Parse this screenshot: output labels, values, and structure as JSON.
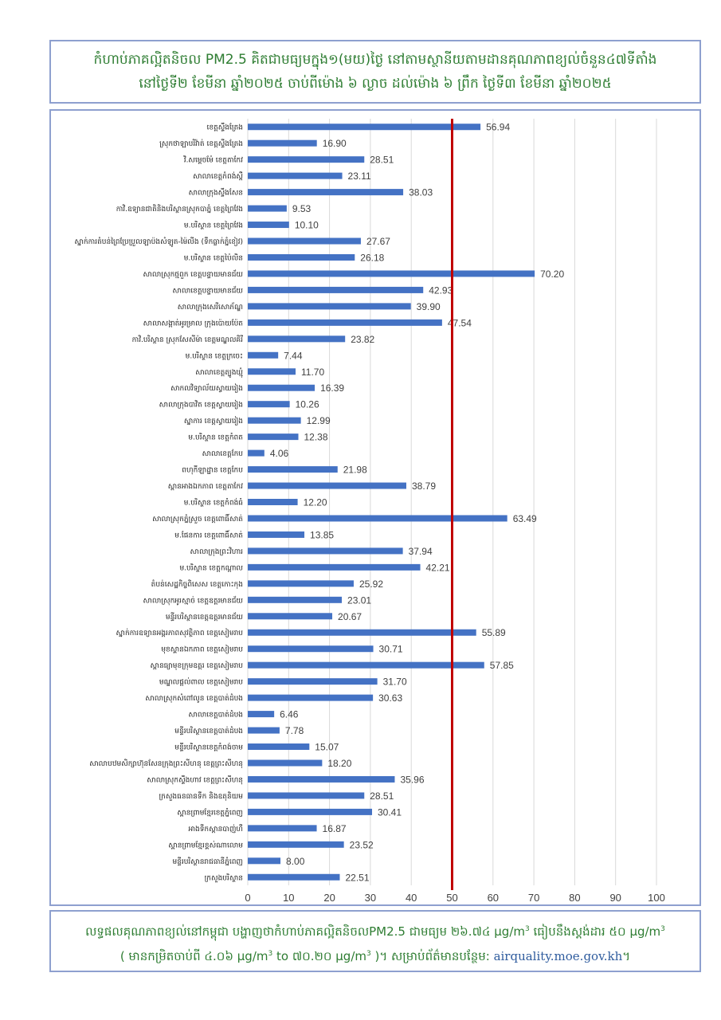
{
  "header": {
    "line1": "កំហាប់ភាគល្អិតនិចល PM2.5 គិតជាមធ្យមក្នុង១(មយ)ថ្ងៃ នៅតាមស្ថានីយតាមដានគុណភាពខ្យល់ចំនួន៤៧ទីតាំង",
    "line2": "នៅថ្ងៃទី២ ខែមីនា ឆ្នាំ២០២៥ ចាប់ពីម៉ោង ៦ ល្ងាច ដល់ម៉ោង ៦ ព្រឹក ថ្ងៃទី៣ ខែមីនា ឆ្នាំ២០២៥"
  },
  "chart_data": {
    "type": "bar",
    "orientation": "horizontal",
    "categories": [
      "ខេត្តស្ទឹងត្រែង",
      "ស្រុកថាឡាបរិវ៉ាត់ ខេត្តស្ទឹងត្រែង",
      "វិ.សម្តេចម៉ែ ខេត្តតាកែវ",
      "សាលាខេត្តកំពង់ស្ពឺ",
      "សាលាក្រុងស្ទឹងសែន",
      "កាវិ.ឧទ្យានជាតិនិងបរិស្ថានស្រុកបាភ្នំ ខេត្តព្រៃវែង",
      "ម.បរិស្ថាន ខេត្តព្រៃវែង",
      "ស្នាក់ការតំបន់ព្រៃប្រែប្រួលឡាប៉ងសំឡូត-ម៉ៃលីង (ទឹកធ្លាក់ភ្នំខៀវ)",
      "ម.បរិស្ថាន ខេត្តប៉ៃលិន",
      "សាលាស្រុកថ្មពួក ខេត្តបន្ទាយមានជ័យ",
      "សាលាខេត្តបន្ទាយមានជ័យ",
      "សាលាក្រុងសេរីសោភ័ណ្ឌ",
      "សាលាសង្កាត់អូរម្រាល ក្រុងប៉ោយប៉ែត",
      "កាវិ.បរិស្ថាន ស្រុកសែសីម៉ា ខេត្តមណ្ឌលគិរី",
      "ម.បរិស្ថាន ខេត្តក្រចេះ",
      "សាលាខេត្តត្បូងឃ្មុំ",
      "សាកលវិទ្យាល័យស្វាយរៀង",
      "សាលាក្រុងបាវិត ខេត្តស្វាយរៀង",
      "ស្នាការ ខេត្តស្វាយរៀង",
      "ម.បរិស្ថាន ខេត្តកំពត",
      "សាលាខេត្តកែប",
      "ពហុកីឡាដ្ឋាន ខេត្តកែប",
      "ស្ពានអាងឯកភាព ខេត្តតាកែវ",
      "ម.បរិស្ថាន ខេត្តកំពង់ធំ",
      "សាលាស្រុកភ្នំស្រួច ខេត្តពោធិ៍សាត់",
      "ម.ផែនការ ខេត្តពោធិ៍សាត់",
      "សាលាក្រុងព្រះវិហារ",
      "ម.បរិស្ថាន ខេត្តកណ្តាល",
      "តំបន់សេដ្ឋកិច្ចពិសេស ខេត្តកោះកុង",
      "សាលាស្រុកអូរស្មាច់ ខេត្តឧត្តរមានជ័យ",
      "មន្ទីរបរិស្ថានខេត្តឧត្តរមានជ័យ",
      "ស្នាក់ការឧទ្យានអង្គរភាពសុវត្ថិភាព ខេត្តសៀមរាប",
      "មុខស្ពានឯកភាព ខេត្តសៀមរាប",
      "ស្ពានធ្យាមុខក្រុមឧត្តរ ខេត្តសៀមរាប",
      "មណ្ឌលផ្តល់ពាល ខេត្តសៀមរាប",
      "សាលាស្រុកសំពៅលូន ខេត្តបាត់ដំបង",
      "សាលាខេត្តបាត់ដំបង",
      "មន្ទីរបរិស្ថានខេត្តបាត់ដំបង",
      "មន្ទីរបរិស្ថានខេត្តកំពង់ចាម",
      "សាលាបឋមសិក្សាហ៊ុនសែនក្រុងព្រះសីហនុ ខេត្តព្រះសីហនុ",
      "សាលាស្រុកស្ទឹងហាវ ខេត្តព្រះសីហនុ",
      "ក្រសួងធនធានទឹក និងឧតុនិយម",
      "ស្ពានព្រាមខ្មែរខេត្តភ្នំពេញ",
      "អាងទឹកស្ពានបាញ់ហឺ",
      "ស្ពានព្រាមខ្មែរខ្ពស់ណាលោម",
      "មន្ទីរបរិស្ថានរាជធានីភ្នំពេញ",
      "ក្រសួងបរិស្ថាន"
    ],
    "values": [
      56.94,
      16.9,
      28.51,
      23.11,
      38.03,
      9.53,
      10.1,
      27.67,
      26.18,
      70.2,
      42.93,
      39.9,
      47.54,
      23.82,
      7.44,
      11.7,
      16.39,
      10.26,
      12.99,
      12.38,
      4.06,
      21.98,
      38.79,
      12.2,
      63.49,
      13.85,
      37.94,
      42.21,
      25.92,
      23.01,
      20.67,
      55.89,
      30.71,
      57.85,
      31.7,
      30.63,
      6.46,
      7.78,
      15.07,
      18.2,
      35.96,
      28.51,
      30.41,
      16.87,
      23.52,
      8.0,
      22.51
    ],
    "value_labels": [
      "56.94",
      "16.90",
      "28.51",
      "23.11",
      "38.03",
      "9.53",
      "10.10",
      "27.67",
      "26.18",
      "70.20",
      "42.93",
      "39.90",
      "47.54",
      "23.82",
      "7.44",
      "11.70",
      "16.39",
      "10.26",
      "12.99",
      "12.38",
      "4.06",
      "21.98",
      "38.79",
      "12.20",
      "63.49",
      "13.85",
      "37.94",
      "42.21",
      "25.92",
      "23.01",
      "20.67",
      "55.89",
      "30.71",
      "57.85",
      "31.70",
      "30.63",
      "6.46",
      "7.78",
      "15.07",
      "18.20",
      "35.96",
      "28.51",
      "30.41",
      "16.87",
      "23.52",
      "8.00",
      "22.51"
    ],
    "xlim": [
      0,
      100
    ],
    "xticks": [
      0,
      10,
      20,
      30,
      40,
      50,
      60,
      70,
      80,
      90,
      100
    ],
    "xtick_labels": [
      "0",
      "10",
      "20",
      "30",
      "40",
      "50",
      "60",
      "70",
      "80",
      "90",
      "100"
    ],
    "reference_line": 50,
    "grid": "vertical",
    "colors": {
      "bar": "#4472c4",
      "reference": "#c00000",
      "grid": "#d9d9d9",
      "text": "#404040"
    }
  },
  "footer": {
    "line1_text": "លទ្ធផលគុណភាពខ្យល់នៅកម្ពុជា បង្ហាញថាកំហាប់ភាគល្អិតនិចលPM2.5 ជាមធ្យម ២៦.៧៤ µg/m",
    "line1_sup1": "3",
    "line1_mid": " ធៀបនឹងស្តង់ដារ ៥០ µg/m",
    "line1_sup2": "3",
    "line2_a": "( មានកម្រិតចាប់ពី ៤.០៦ µg/m",
    "line2_sup1": "3",
    "line2_b": " to ៧០.២០ µg/m",
    "line2_sup2": "3",
    "line2_c": " )។ សម្រាប់ព័ត៌មានបន្ថែម: ",
    "link_text": "airquality.moe.gov.kh",
    "line2_end": "។"
  }
}
